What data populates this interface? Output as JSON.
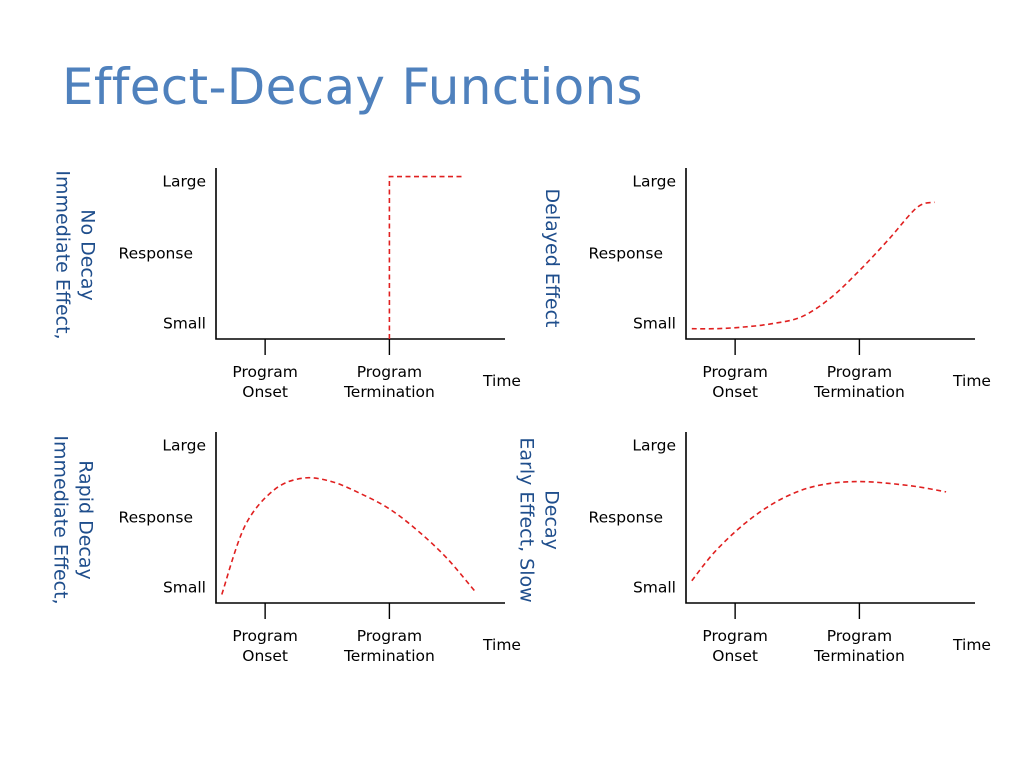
{
  "title": "Effect-Decay Functions",
  "colors": {
    "title": "#4f81bd",
    "panel_label": "#1f4e8c",
    "curve": "#e02020",
    "axis": "#000000"
  },
  "chart_data": [
    {
      "type": "line",
      "panel_label": [
        "Immediate Effect,",
        "No Decay"
      ],
      "y_ticks": [
        "Large",
        "Response",
        "Small"
      ],
      "x_ticks": [
        [
          "Program",
          "Onset"
        ],
        [
          "Program",
          "Termination"
        ]
      ],
      "x_axis_end_label": "Time",
      "series": [
        {
          "style": "dashed",
          "x": [
            3.0,
            3.0,
            4.3
          ],
          "y": [
            0.0,
            0.95,
            0.95
          ]
        }
      ]
    },
    {
      "type": "line",
      "panel_label": [
        "Delayed Effect"
      ],
      "y_ticks": [
        "Large",
        "Response",
        "Small"
      ],
      "x_ticks": [
        [
          "Program",
          "Onset"
        ],
        [
          "Program",
          "Termination"
        ]
      ],
      "x_axis_end_label": "Time",
      "series": [
        {
          "style": "dashed",
          "x": [
            0.1,
            0.5,
            1.0,
            1.5,
            2.0,
            2.5,
            3.0,
            3.5,
            4.0,
            4.3
          ],
          "y": [
            0.06,
            0.06,
            0.07,
            0.09,
            0.13,
            0.24,
            0.4,
            0.58,
            0.77,
            0.8
          ]
        }
      ]
    },
    {
      "type": "line",
      "panel_label": [
        "Immediate Effect,",
        "Rapid Decay"
      ],
      "y_ticks": [
        "Large",
        "Response",
        "Small"
      ],
      "x_ticks": [
        [
          "Program",
          "Onset"
        ],
        [
          "Program",
          "Termination"
        ]
      ],
      "x_axis_end_label": "Time",
      "series": [
        {
          "style": "dashed",
          "x": [
            0.1,
            0.5,
            1.0,
            1.5,
            2.0,
            2.5,
            3.0,
            3.5,
            4.0,
            4.5
          ],
          "y": [
            0.05,
            0.45,
            0.66,
            0.73,
            0.71,
            0.64,
            0.55,
            0.42,
            0.26,
            0.06
          ]
        }
      ]
    },
    {
      "type": "line",
      "panel_label": [
        "Early Effect, Slow",
        "Decay"
      ],
      "y_ticks": [
        "Large",
        "Response",
        "Small"
      ],
      "x_ticks": [
        [
          "Program",
          "Onset"
        ],
        [
          "Program",
          "Termination"
        ]
      ],
      "x_axis_end_label": "Time",
      "series": [
        {
          "style": "dashed",
          "x": [
            0.1,
            0.5,
            1.0,
            1.5,
            2.0,
            2.5,
            3.0,
            3.5,
            4.0,
            4.5
          ],
          "y": [
            0.13,
            0.3,
            0.46,
            0.58,
            0.66,
            0.7,
            0.71,
            0.7,
            0.68,
            0.65
          ]
        }
      ]
    }
  ]
}
